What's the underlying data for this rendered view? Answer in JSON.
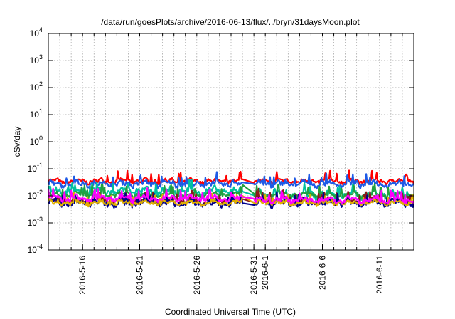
{
  "chart_data": {
    "type": "line",
    "title": "/data/run/goesPlots/archive/2016-06-13/flux/../bryn/31daysMoon.plot",
    "xlabel": "Coordinated Universal Time (UTC)",
    "ylabel": "cSv/day",
    "yscale": "log",
    "ylim": [
      0.0001,
      10000
    ],
    "xlim": [
      "2016-05-13",
      "2016-06-14"
    ],
    "yticks": [
      {
        "value": 0.0001,
        "base": "10",
        "exp": "-4"
      },
      {
        "value": 0.001,
        "base": "10",
        "exp": "-3"
      },
      {
        "value": 0.01,
        "base": "10",
        "exp": "-2"
      },
      {
        "value": 0.1,
        "base": "10",
        "exp": "-1"
      },
      {
        "value": 1,
        "base": "10",
        "exp": "0"
      },
      {
        "value": 10,
        "base": "10",
        "exp": "1"
      },
      {
        "value": 100,
        "base": "10",
        "exp": "2"
      },
      {
        "value": 1000,
        "base": "10",
        "exp": "3"
      },
      {
        "value": 10000,
        "base": "10",
        "exp": "4"
      }
    ],
    "xticks": [
      {
        "date": "2016-05-16",
        "label": "2016-5-16"
      },
      {
        "date": "2016-05-21",
        "label": "2016-5-21"
      },
      {
        "date": "2016-05-26",
        "label": "2016-5-26"
      },
      {
        "date": "2016-05-31",
        "label": "2016-5-31"
      },
      {
        "date": "2016-06-01",
        "label": "2016-6-1"
      },
      {
        "date": "2016-06-06",
        "label": "2016-6-6"
      },
      {
        "date": "2016-06-11",
        "label": "2016-6-11"
      }
    ],
    "grid": true,
    "data_gap": [
      "2016-05-30",
      "2016-05-31"
    ],
    "series": [
      {
        "color": "#ff0000",
        "values": [
          {
            "x": "2016-05-13",
            "y": 0.035
          },
          {
            "x": "2016-05-30",
            "y": 0.035
          },
          {
            "x": "2016-05-31",
            "y": 0.035
          },
          {
            "x": "2016-06-14",
            "y": 0.035
          }
        ]
      },
      {
        "color": "#1e5ae6",
        "values": [
          {
            "x": "2016-05-13",
            "y": 0.028
          },
          {
            "x": "2016-05-30",
            "y": 0.028
          },
          {
            "x": "2016-05-31",
            "y": 0.028
          },
          {
            "x": "2016-06-14",
            "y": 0.028
          }
        ]
      },
      {
        "color": "#00c0a0",
        "values": [
          {
            "x": "2016-05-13",
            "y": 0.015
          },
          {
            "x": "2016-05-30",
            "y": 0.015
          },
          {
            "x": "2016-05-31",
            "y": 0.011
          },
          {
            "x": "2016-06-14",
            "y": 0.011
          }
        ]
      },
      {
        "color": "#20a040",
        "values": [
          {
            "x": "2016-05-13",
            "y": 0.011
          },
          {
            "x": "2016-05-30",
            "y": 0.011
          },
          {
            "x": "2016-05-31",
            "y": 0.011
          },
          {
            "x": "2016-06-14",
            "y": 0.011
          }
        ]
      },
      {
        "color": "#8b1a1a",
        "values": [
          {
            "x": "2016-05-13",
            "y": 0.0065
          },
          {
            "x": "2016-05-30",
            "y": 0.0065
          },
          {
            "x": "2016-05-31",
            "y": 0.0065
          },
          {
            "x": "2016-06-14",
            "y": 0.0065
          }
        ]
      },
      {
        "color": "#00008b",
        "values": [
          {
            "x": "2016-05-13",
            "y": 0.0055
          },
          {
            "x": "2016-05-30",
            "y": 0.0055
          },
          {
            "x": "2016-05-31",
            "y": 0.0055
          },
          {
            "x": "2016-06-14",
            "y": 0.0055
          }
        ]
      },
      {
        "color": "#e0b000",
        "values": [
          {
            "x": "2016-05-13",
            "y": 0.0055
          },
          {
            "x": "2016-05-30",
            "y": 0.0055
          },
          {
            "x": "2016-05-31",
            "y": 0.0055
          },
          {
            "x": "2016-06-14",
            "y": 0.0055
          }
        ]
      },
      {
        "color": "#ff00ff",
        "values": [
          {
            "x": "2016-05-13",
            "y": 0.008
          },
          {
            "x": "2016-05-30",
            "y": 0.008
          },
          {
            "x": "2016-05-31",
            "y": 0.007
          },
          {
            "x": "2016-06-14",
            "y": 0.007
          }
        ]
      }
    ]
  }
}
